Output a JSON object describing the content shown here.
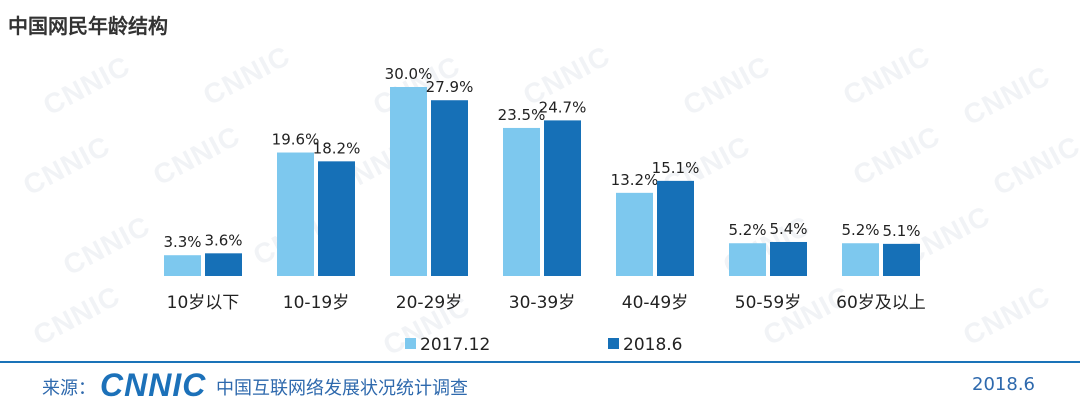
{
  "title": "中国网民年龄结构",
  "watermark_text": "CNNIC",
  "chart_data": {
    "type": "bar",
    "categories": [
      "10岁以下",
      "10-19岁",
      "20-29岁",
      "30-39岁",
      "40-49岁",
      "50-59岁",
      "60岁及以上"
    ],
    "series": [
      {
        "name": "2017.12",
        "color": "#7dc8ee",
        "values": [
          3.3,
          19.6,
          30.0,
          23.5,
          13.2,
          5.2,
          5.2
        ],
        "labels": [
          "3.3%",
          "19.6%",
          "30.0%",
          "23.5%",
          "13.2%",
          "5.2%",
          "5.2%"
        ]
      },
      {
        "name": "2018.6",
        "color": "#1670b7",
        "values": [
          3.6,
          18.2,
          27.9,
          24.7,
          15.1,
          5.4,
          5.1
        ],
        "labels": [
          "3.6%",
          "18.2%",
          "27.9%",
          "24.7%",
          "15.1%",
          "5.4%",
          "5.1%"
        ]
      }
    ],
    "ylim": [
      0,
      30
    ],
    "legend_position": "bottom-center",
    "grid": false
  },
  "footer": {
    "source_label": "来源：",
    "logo_text": "CNNIC",
    "report_name": "中国互联网络发展状况统计调查",
    "date": "2018.6"
  }
}
